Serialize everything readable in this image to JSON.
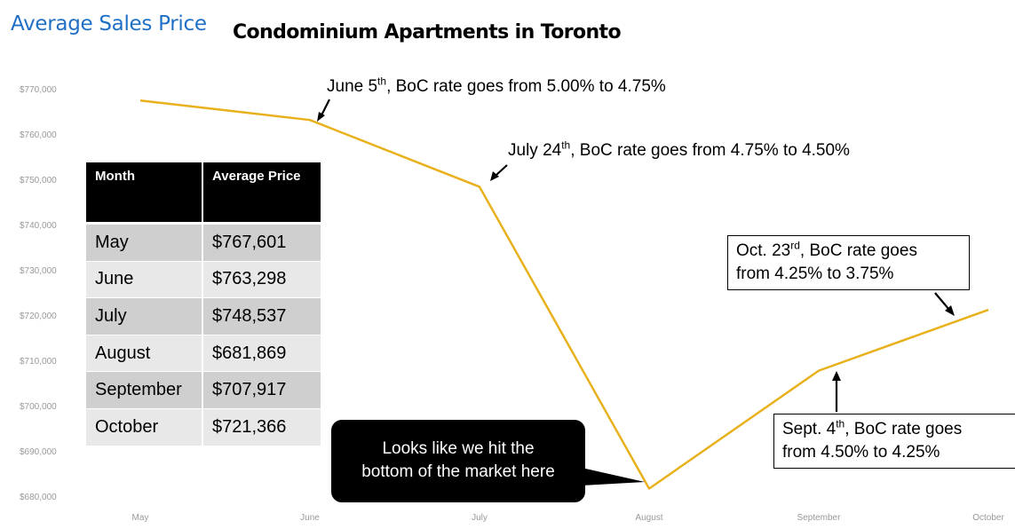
{
  "brand": "Average Sales Price",
  "chart_data": {
    "type": "line",
    "title": "Condominium Apartments in Toronto",
    "categories": [
      "May",
      "June",
      "July",
      "August",
      "September",
      "October"
    ],
    "series": [
      {
        "values": [
          767601,
          763298,
          748537,
          681869,
          707917,
          721366
        ]
      }
    ],
    "ylim": [
      680000,
      770000
    ],
    "yticks": [
      "$680,000",
      "$690,000",
      "$700,000",
      "$710,000",
      "$720,000",
      "$730,000",
      "$740,000",
      "$750,000",
      "$760,000",
      "$770,000"
    ],
    "line_color": "#e8b11c",
    "grid": false,
    "annotations": {
      "june": {
        "pre": "June 5",
        "sup": "th",
        "post": ", BoC rate goes from 5.00% to 4.75%"
      },
      "july": {
        "pre": "July 24",
        "sup": "th",
        "post": ", BoC rate goes from 4.75% to 4.50%"
      },
      "oct": {
        "pre": "Oct. 23",
        "sup": "rd",
        "post": ", BoC rate goes",
        "line2": "from 4.25% to 3.75%"
      },
      "sept": {
        "pre": "Sept. 4",
        "sup": "th",
        "post": ", BoC rate goes",
        "line2": "from 4.50% to 4.25%"
      },
      "callout": {
        "line1": "Looks like we hit the",
        "line2": "bottom of the market here"
      }
    }
  },
  "table": {
    "headers": [
      "Month",
      "Average Price"
    ],
    "rows": [
      [
        "May",
        "$767,601"
      ],
      [
        "June",
        "$763,298"
      ],
      [
        "July",
        "$748,537"
      ],
      [
        "August",
        "$681,869"
      ],
      [
        "September",
        "$707,917"
      ],
      [
        "October",
        "$721,366"
      ]
    ]
  }
}
